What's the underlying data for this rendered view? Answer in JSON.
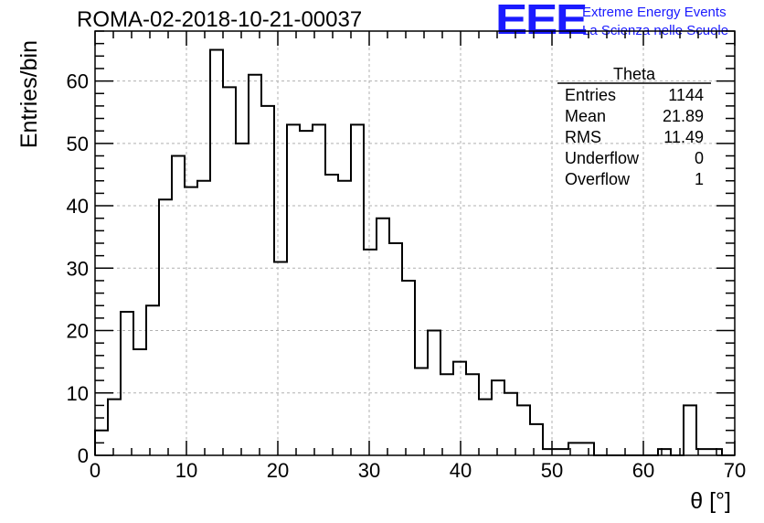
{
  "header": {
    "title": "ROMA-02-2018-10-21-00037",
    "logo_mark": "EEE",
    "logo_line1": "Extreme Energy Events",
    "logo_line2": "La Scienza nelle Scuole"
  },
  "stats": {
    "name": "Theta",
    "rows": [
      {
        "label": "Entries",
        "value": "1144"
      },
      {
        "label": "Mean",
        "value": "21.89"
      },
      {
        "label": "RMS",
        "value": "11.49"
      },
      {
        "label": "Underflow",
        "value": "0"
      },
      {
        "label": "Overflow",
        "value": "1"
      }
    ]
  },
  "chart_data": {
    "type": "bar",
    "histogram_style": "step",
    "xlabel": "θ [°]",
    "ylabel": "Entries/bin",
    "xlim": [
      0,
      70
    ],
    "ylim": [
      0,
      68
    ],
    "grid": true,
    "line_color": "#000000",
    "x_ticks": [
      0,
      10,
      20,
      30,
      40,
      50,
      60,
      70
    ],
    "y_ticks": [
      0,
      10,
      20,
      30,
      40,
      50,
      60
    ],
    "bin_edges": [
      0,
      1.4,
      2.8,
      4.2,
      5.6,
      7,
      8.4,
      9.8,
      11.2,
      12.6,
      14,
      15.4,
      16.8,
      18.2,
      19.6,
      21,
      22.4,
      23.8,
      25.2,
      26.6,
      28,
      29.4,
      30.8,
      32.2,
      33.6,
      35,
      36.4,
      37.8,
      39.2,
      40.6,
      42,
      43.4,
      44.8,
      46.2,
      47.6,
      49,
      50.4,
      51.8,
      53.2,
      54.6,
      56,
      57.4,
      58.8,
      60.2,
      61.6,
      63,
      64.4,
      65.8,
      67.2,
      68.6,
      70
    ],
    "values": [
      4,
      9,
      23,
      17,
      24,
      41,
      48,
      43,
      44,
      65,
      59,
      50,
      61,
      56,
      31,
      53,
      52,
      53,
      45,
      44,
      53,
      33,
      38,
      34,
      28,
      14,
      20,
      13,
      15,
      13,
      9,
      12,
      10,
      8,
      5,
      1,
      1,
      2,
      2,
      0,
      0,
      0,
      0,
      0,
      1,
      0,
      8,
      1,
      1,
      0
    ]
  }
}
